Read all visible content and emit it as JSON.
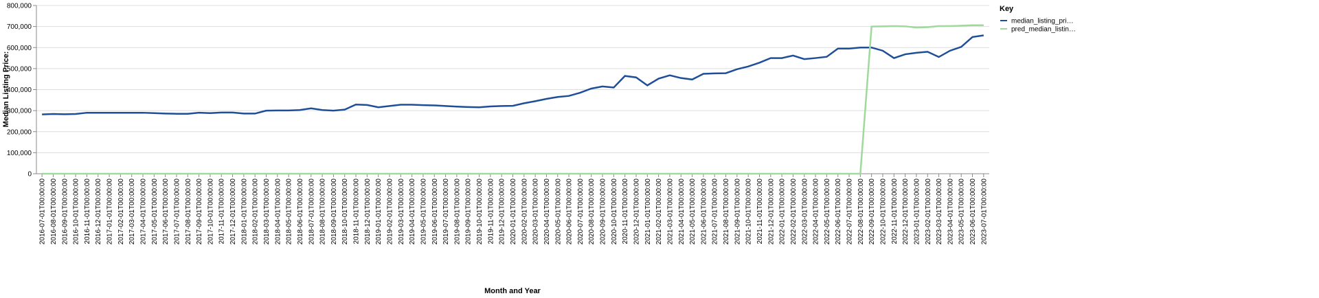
{
  "chart_data": {
    "type": "line",
    "x_label": "Month and Year",
    "y_label": "Median Listing Price:",
    "legend_title": "Key",
    "legend_position": "right",
    "grid": true,
    "categories": [
      "2016-07-01T00:00:00",
      "2016-08-01T00:00:00",
      "2016-09-01T00:00:00",
      "2016-10-01T00:00:00",
      "2016-11-01T00:00:00",
      "2016-12-01T00:00:00",
      "2017-01-01T00:00:00",
      "2017-02-01T00:00:00",
      "2017-03-01T00:00:00",
      "2017-04-01T00:00:00",
      "2017-05-01T00:00:00",
      "2017-06-01T00:00:00",
      "2017-07-01T00:00:00",
      "2017-08-01T00:00:00",
      "2017-09-01T00:00:00",
      "2017-10-01T00:00:00",
      "2017-11-01T00:00:00",
      "2017-12-01T00:00:00",
      "2018-01-01T00:00:00",
      "2018-02-01T00:00:00",
      "2018-03-01T00:00:00",
      "2018-04-01T00:00:00",
      "2018-05-01T00:00:00",
      "2018-06-01T00:00:00",
      "2018-07-01T00:00:00",
      "2018-08-01T00:00:00",
      "2018-09-01T00:00:00",
      "2018-10-01T00:00:00",
      "2018-11-01T00:00:00",
      "2018-12-01T00:00:00",
      "2019-01-01T00:00:00",
      "2019-02-01T00:00:00",
      "2019-03-01T00:00:00",
      "2019-04-01T00:00:00",
      "2019-05-01T00:00:00",
      "2019-06-01T00:00:00",
      "2019-07-01T00:00:00",
      "2019-08-01T00:00:00",
      "2019-09-01T00:00:00",
      "2019-10-01T00:00:00",
      "2019-11-01T00:00:00",
      "2019-12-01T00:00:00",
      "2020-01-01T00:00:00",
      "2020-02-01T00:00:00",
      "2020-03-01T00:00:00",
      "2020-04-01T00:00:00",
      "2020-05-01T00:00:00",
      "2020-06-01T00:00:00",
      "2020-07-01T00:00:00",
      "2020-08-01T00:00:00",
      "2020-09-01T00:00:00",
      "2020-10-01T00:00:00",
      "2020-11-01T00:00:00",
      "2020-12-01T00:00:00",
      "2021-01-01T00:00:00",
      "2021-02-01T00:00:00",
      "2021-03-01T00:00:00",
      "2021-04-01T00:00:00",
      "2021-05-01T00:00:00",
      "2021-06-01T00:00:00",
      "2021-07-01T00:00:00",
      "2021-08-01T00:00:00",
      "2021-09-01T00:00:00",
      "2021-10-01T00:00:00",
      "2021-11-01T00:00:00",
      "2021-12-01T00:00:00",
      "2022-01-01T00:00:00",
      "2022-02-01T00:00:00",
      "2022-03-01T00:00:00",
      "2022-04-01T00:00:00",
      "2022-05-01T00:00:00",
      "2022-06-01T00:00:00",
      "2022-07-01T00:00:00",
      "2022-08-01T00:00:00",
      "2022-09-01T00:00:00",
      "2022-10-01T00:00:00",
      "2022-11-01T00:00:00",
      "2022-12-01T00:00:00",
      "2023-01-01T00:00:00",
      "2023-02-01T00:00:00",
      "2023-03-01T00:00:00",
      "2023-04-01T00:00:00",
      "2023-05-01T00:00:00",
      "2023-06-01T00:00:00",
      "2023-07-01T00:00:00"
    ],
    "series": [
      {
        "name": "median_listing_pri…",
        "color": "#1f4e99",
        "values": [
          282000,
          284000,
          283000,
          284000,
          290000,
          290000,
          290000,
          290000,
          290000,
          290000,
          288000,
          286000,
          285000,
          285000,
          290000,
          288000,
          291000,
          291000,
          286000,
          286000,
          300000,
          301000,
          301000,
          303000,
          311000,
          303000,
          300000,
          305000,
          329000,
          327000,
          316000,
          322000,
          328000,
          328000,
          326000,
          325000,
          322000,
          319000,
          317000,
          316000,
          320000,
          322000,
          323000,
          335000,
          345000,
          356000,
          365000,
          370000,
          385000,
          405000,
          415000,
          410000,
          465000,
          458000,
          420000,
          452000,
          468000,
          455000,
          448000,
          475000,
          477000,
          478000,
          497000,
          510000,
          528000,
          550000,
          550000,
          562000,
          545000,
          550000,
          556000,
          595000,
          595000,
          600000,
          600000,
          585000,
          550000,
          568000,
          575000,
          580000,
          555000,
          585000,
          603000,
          650000,
          658000
        ]
      },
      {
        "name": "pred_median_listin…",
        "color": "#9fd99b",
        "values": [
          0,
          0,
          0,
          0,
          0,
          0,
          0,
          0,
          0,
          0,
          0,
          0,
          0,
          0,
          0,
          0,
          0,
          0,
          0,
          0,
          0,
          0,
          0,
          0,
          0,
          0,
          0,
          0,
          0,
          0,
          0,
          0,
          0,
          0,
          0,
          0,
          0,
          0,
          0,
          0,
          0,
          0,
          0,
          0,
          0,
          0,
          0,
          0,
          0,
          0,
          0,
          0,
          0,
          0,
          0,
          0,
          0,
          0,
          0,
          0,
          0,
          0,
          0,
          0,
          0,
          0,
          0,
          0,
          0,
          0,
          0,
          0,
          0,
          0,
          700000,
          701000,
          702000,
          701000,
          695000,
          697000,
          702000,
          702000,
          704000,
          706000,
          706000
        ]
      }
    ],
    "ylim": [
      0,
      800000
    ],
    "yticks": [
      0,
      {
        "value": 100000,
        "label": "100,000"
      },
      {
        "value": 200000,
        "label": "200,000"
      },
      {
        "value": 300000,
        "label": "300,000"
      },
      {
        "value": 400000,
        "label": "400,000"
      },
      {
        "value": 500000,
        "label": "500,000"
      },
      {
        "value": 600000,
        "label": "600,000"
      },
      {
        "value": 700000,
        "label": "700,000"
      },
      {
        "value": 800000,
        "label": "800,000"
      }
    ]
  }
}
